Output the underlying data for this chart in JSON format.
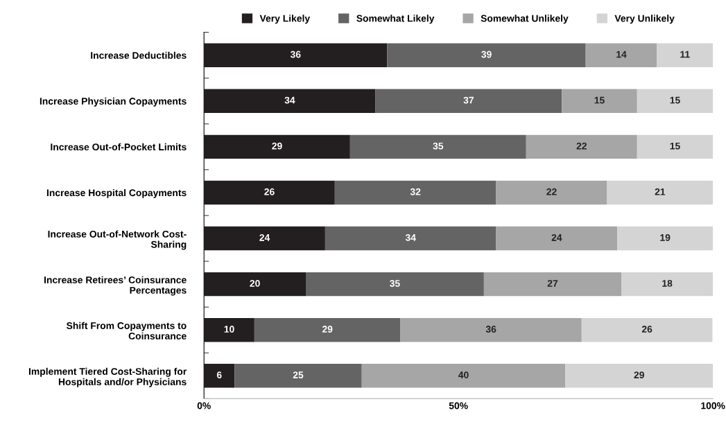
{
  "chart_data": {
    "type": "bar",
    "orientation": "horizontal",
    "stacked": true,
    "categories": [
      "Increase Deductibles",
      "Increase Physician Copayments",
      "Increase Out-of-Pocket Limits",
      "Increase Hospital Copayments",
      "Increase Out-of-Network Cost-\nSharing",
      "Increase Retirees’ Coinsurance\nPercentages",
      "Shift From Copayments to\nCoinsurance",
      "Implement Tiered Cost-Sharing for\nHospitals and/or Physicians"
    ],
    "series": [
      {
        "name": "Very Likely",
        "color": "#231f20",
        "values": [
          36,
          33.7,
          28.7,
          25.7,
          23.8,
          20,
          9.9,
          6
        ],
        "value_labels": [
          "36",
          "34",
          "29",
          "26",
          "24",
          "20",
          "10",
          "6"
        ]
      },
      {
        "name": "Somewhat Likely",
        "color": "#646464",
        "values": [
          39,
          36.6,
          34.6,
          31.7,
          33.6,
          35,
          28.7,
          25
        ],
        "value_labels": [
          "39",
          "37",
          "35",
          "32",
          "34",
          "35",
          "29",
          "25"
        ]
      },
      {
        "name": "Somewhat Unlikely",
        "color": "#a6a6a6",
        "values": [
          14,
          14.8,
          21.8,
          21.8,
          23.8,
          27,
          35.6,
          40
        ],
        "value_labels": [
          "14",
          "15",
          "22",
          "22",
          "24",
          "27",
          "36",
          "40"
        ]
      },
      {
        "name": "Very Unlikely",
        "color": "#d4d4d4",
        "values": [
          11,
          14.9,
          14.9,
          20.8,
          18.8,
          18,
          25.7,
          29
        ],
        "value_labels": [
          "11",
          "15",
          "15",
          "21",
          "19",
          "18",
          "26",
          "29"
        ]
      }
    ],
    "xlim": [
      0,
      100
    ],
    "xticks": [
      {
        "value": 0,
        "label": "0%"
      },
      {
        "value": 50,
        "label": "50%"
      },
      {
        "value": 100,
        "label": "100%"
      }
    ],
    "grid": false,
    "legend": "top"
  }
}
